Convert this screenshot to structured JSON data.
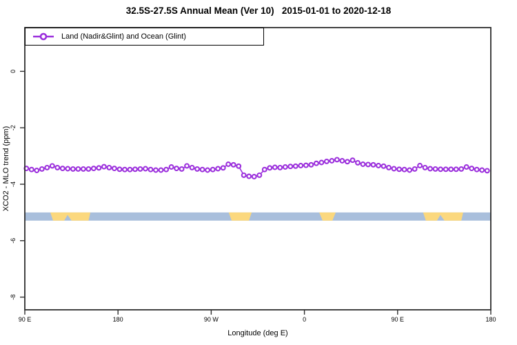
{
  "title": "32.5S-27.5S Annual Mean (Ver 10)   2015-01-01 to 2020-12-18",
  "legend": {
    "label": "Land (Nadir&Glint) and Ocean (Glint)"
  },
  "accent_color": "#9B2FDC",
  "chart_data": {
    "type": "line",
    "title": "32.5S-27.5S Annual Mean (Ver 10)   2015-01-01 to 2020-12-18",
    "xlabel": "Longitude (deg E)",
    "ylabel": "XCO2 - MLO trend (ppm)",
    "xlim": [
      90,
      540
    ],
    "ylim": [
      -8.45,
      1.55
    ],
    "grid": false,
    "legend_position": "top-left",
    "x_ticks": [
      {
        "value": 90,
        "label": "90 E"
      },
      {
        "value": 180,
        "label": "180"
      },
      {
        "value": 270,
        "label": "90 W"
      },
      {
        "value": 360,
        "label": "0"
      },
      {
        "value": 450,
        "label": "90 E"
      },
      {
        "value": 540,
        "label": "180"
      }
    ],
    "y_ticks": [
      {
        "value": 0,
        "label": "0"
      },
      {
        "value": -2,
        "label": "-2"
      },
      {
        "value": -4,
        "label": "-4"
      },
      {
        "value": -6,
        "label": "-6"
      },
      {
        "value": -8,
        "label": "-8"
      }
    ],
    "series": [
      {
        "name": "Land (Nadir&Glint) and Ocean (Glint)",
        "color": "#9B2FDC",
        "marker": "open-circle",
        "x": [
          91.5,
          96.5,
          101.5,
          106.5,
          111.5,
          116.5,
          121.5,
          126.5,
          131.5,
          136.5,
          141.5,
          146.5,
          151.5,
          156.5,
          161.5,
          166.5,
          171.5,
          176.5,
          181.5,
          186.5,
          191.5,
          196.5,
          201.5,
          206.5,
          211.5,
          216.5,
          221.5,
          226.5,
          231.5,
          236.5,
          241.5,
          246.5,
          251.5,
          256.5,
          261.5,
          266.5,
          271.5,
          276.5,
          281.5,
          286.5,
          291.5,
          296.5,
          301.5,
          306.5,
          311.5,
          316.5,
          321.5,
          326.5,
          331.5,
          336.5,
          341.5,
          346.5,
          351.5,
          356.5,
          361.5,
          366.5,
          371.5,
          376.5,
          381.5,
          386.5,
          391.5,
          396.5,
          401.5,
          406.5,
          411.5,
          416.5,
          421.5,
          426.5,
          431.5,
          436.5,
          441.5,
          446.5,
          451.5,
          456.5,
          461.5,
          466.5,
          471.5,
          476.5,
          481.5,
          486.5,
          491.5,
          496.5,
          501.5,
          506.5,
          511.5,
          516.5,
          521.5,
          526.5,
          531.5,
          536.5
        ],
        "values": [
          -3.44,
          -3.48,
          -3.51,
          -3.46,
          -3.41,
          -3.35,
          -3.41,
          -3.44,
          -3.45,
          -3.46,
          -3.46,
          -3.46,
          -3.46,
          -3.44,
          -3.42,
          -3.38,
          -3.41,
          -3.44,
          -3.47,
          -3.48,
          -3.48,
          -3.47,
          -3.46,
          -3.45,
          -3.48,
          -3.5,
          -3.5,
          -3.48,
          -3.39,
          -3.44,
          -3.46,
          -3.35,
          -3.41,
          -3.46,
          -3.48,
          -3.5,
          -3.48,
          -3.45,
          -3.42,
          -3.29,
          -3.31,
          -3.36,
          -3.68,
          -3.72,
          -3.73,
          -3.68,
          -3.48,
          -3.42,
          -3.4,
          -3.41,
          -3.39,
          -3.37,
          -3.36,
          -3.34,
          -3.33,
          -3.31,
          -3.26,
          -3.23,
          -3.19,
          -3.17,
          -3.13,
          -3.17,
          -3.2,
          -3.15,
          -3.24,
          -3.29,
          -3.3,
          -3.31,
          -3.34,
          -3.36,
          -3.41,
          -3.45,
          -3.47,
          -3.48,
          -3.5,
          -3.46,
          -3.34,
          -3.41,
          -3.45,
          -3.46,
          -3.47,
          -3.47,
          -3.47,
          -3.47,
          -3.46,
          -3.39,
          -3.44,
          -3.48,
          -3.5,
          -3.52
        ]
      }
    ],
    "surface_band": {
      "description": "land-ocean strip for latitude band 32.5S-27.5S",
      "ocean_color": "#A9BFDC",
      "land_color": "#FBD87E",
      "y_top": -5.0,
      "y_bottom": -5.29,
      "land_polygons": [
        {
          "name": "australia",
          "points": [
            [
              114.6,
              0
            ],
            [
              153.3,
              0
            ],
            [
              151.5,
              1
            ],
            [
              135.2,
              1
            ],
            [
              131.3,
              0.3
            ],
            [
              128.0,
              1
            ],
            [
              117.3,
              1
            ]
          ]
        },
        {
          "name": "south-america",
          "points": [
            [
              286.9,
              0
            ],
            [
              309.1,
              0
            ],
            [
              306.4,
              1
            ],
            [
              289.8,
              1
            ]
          ]
        },
        {
          "name": "south-africa",
          "points": [
            [
              374.3,
              0
            ],
            [
              390.2,
              0
            ],
            [
              387.0,
              1
            ],
            [
              377.6,
              1
            ]
          ]
        },
        {
          "name": "australia-wrapped",
          "points": [
            [
              474.6,
              0
            ],
            [
              513.3,
              0
            ],
            [
              511.5,
              1
            ],
            [
              495.2,
              1
            ],
            [
              491.3,
              0.3
            ],
            [
              488.0,
              1
            ],
            [
              477.3,
              1
            ]
          ]
        }
      ]
    }
  }
}
